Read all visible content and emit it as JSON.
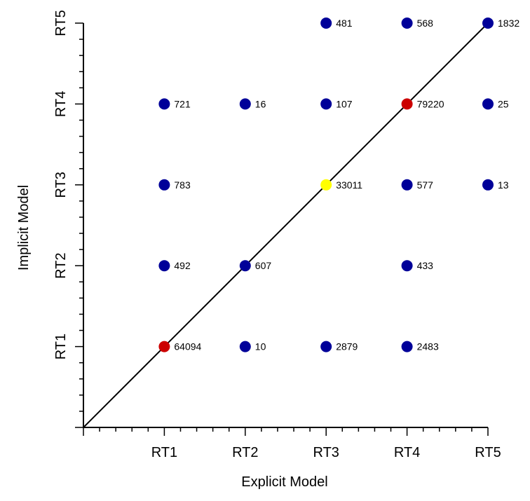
{
  "chart_data": {
    "type": "scatter",
    "xlabel": "Explicit Model",
    "ylabel": "Implicit Model",
    "categories": [
      "RT1",
      "RT2",
      "RT3",
      "RT4",
      "RT5"
    ],
    "xlim": [
      0,
      5
    ],
    "ylim": [
      0,
      5
    ],
    "grid": false,
    "diagonal_line": true,
    "colors": {
      "default": "#000099",
      "highlight_red": "#cc0000",
      "highlight_yellow": "#ffff00"
    },
    "points": [
      {
        "x": 1,
        "y": 1,
        "label": "64094",
        "color": "#cc0000"
      },
      {
        "x": 2,
        "y": 1,
        "label": "10",
        "color": "#000099"
      },
      {
        "x": 3,
        "y": 1,
        "label": "2879",
        "color": "#000099"
      },
      {
        "x": 4,
        "y": 1,
        "label": "2483",
        "color": "#000099"
      },
      {
        "x": 1,
        "y": 2,
        "label": "492",
        "color": "#000099"
      },
      {
        "x": 2,
        "y": 2,
        "label": "607",
        "color": "#000099"
      },
      {
        "x": 4,
        "y": 2,
        "label": "433",
        "color": "#000099"
      },
      {
        "x": 1,
        "y": 3,
        "label": "783",
        "color": "#000099"
      },
      {
        "x": 3,
        "y": 3,
        "label": "33011",
        "color": "#ffff00"
      },
      {
        "x": 4,
        "y": 3,
        "label": "577",
        "color": "#000099"
      },
      {
        "x": 5,
        "y": 3,
        "label": "13",
        "color": "#000099"
      },
      {
        "x": 1,
        "y": 4,
        "label": "721",
        "color": "#000099"
      },
      {
        "x": 2,
        "y": 4,
        "label": "16",
        "color": "#000099"
      },
      {
        "x": 3,
        "y": 4,
        "label": "107",
        "color": "#000099"
      },
      {
        "x": 4,
        "y": 4,
        "label": "79220",
        "color": "#cc0000"
      },
      {
        "x": 5,
        "y": 4,
        "label": "25",
        "color": "#000099"
      },
      {
        "x": 3,
        "y": 5,
        "label": "481",
        "color": "#000099"
      },
      {
        "x": 4,
        "y": 5,
        "label": "568",
        "color": "#000099"
      },
      {
        "x": 5,
        "y": 5,
        "label": "1832",
        "color": "#000099"
      }
    ]
  }
}
